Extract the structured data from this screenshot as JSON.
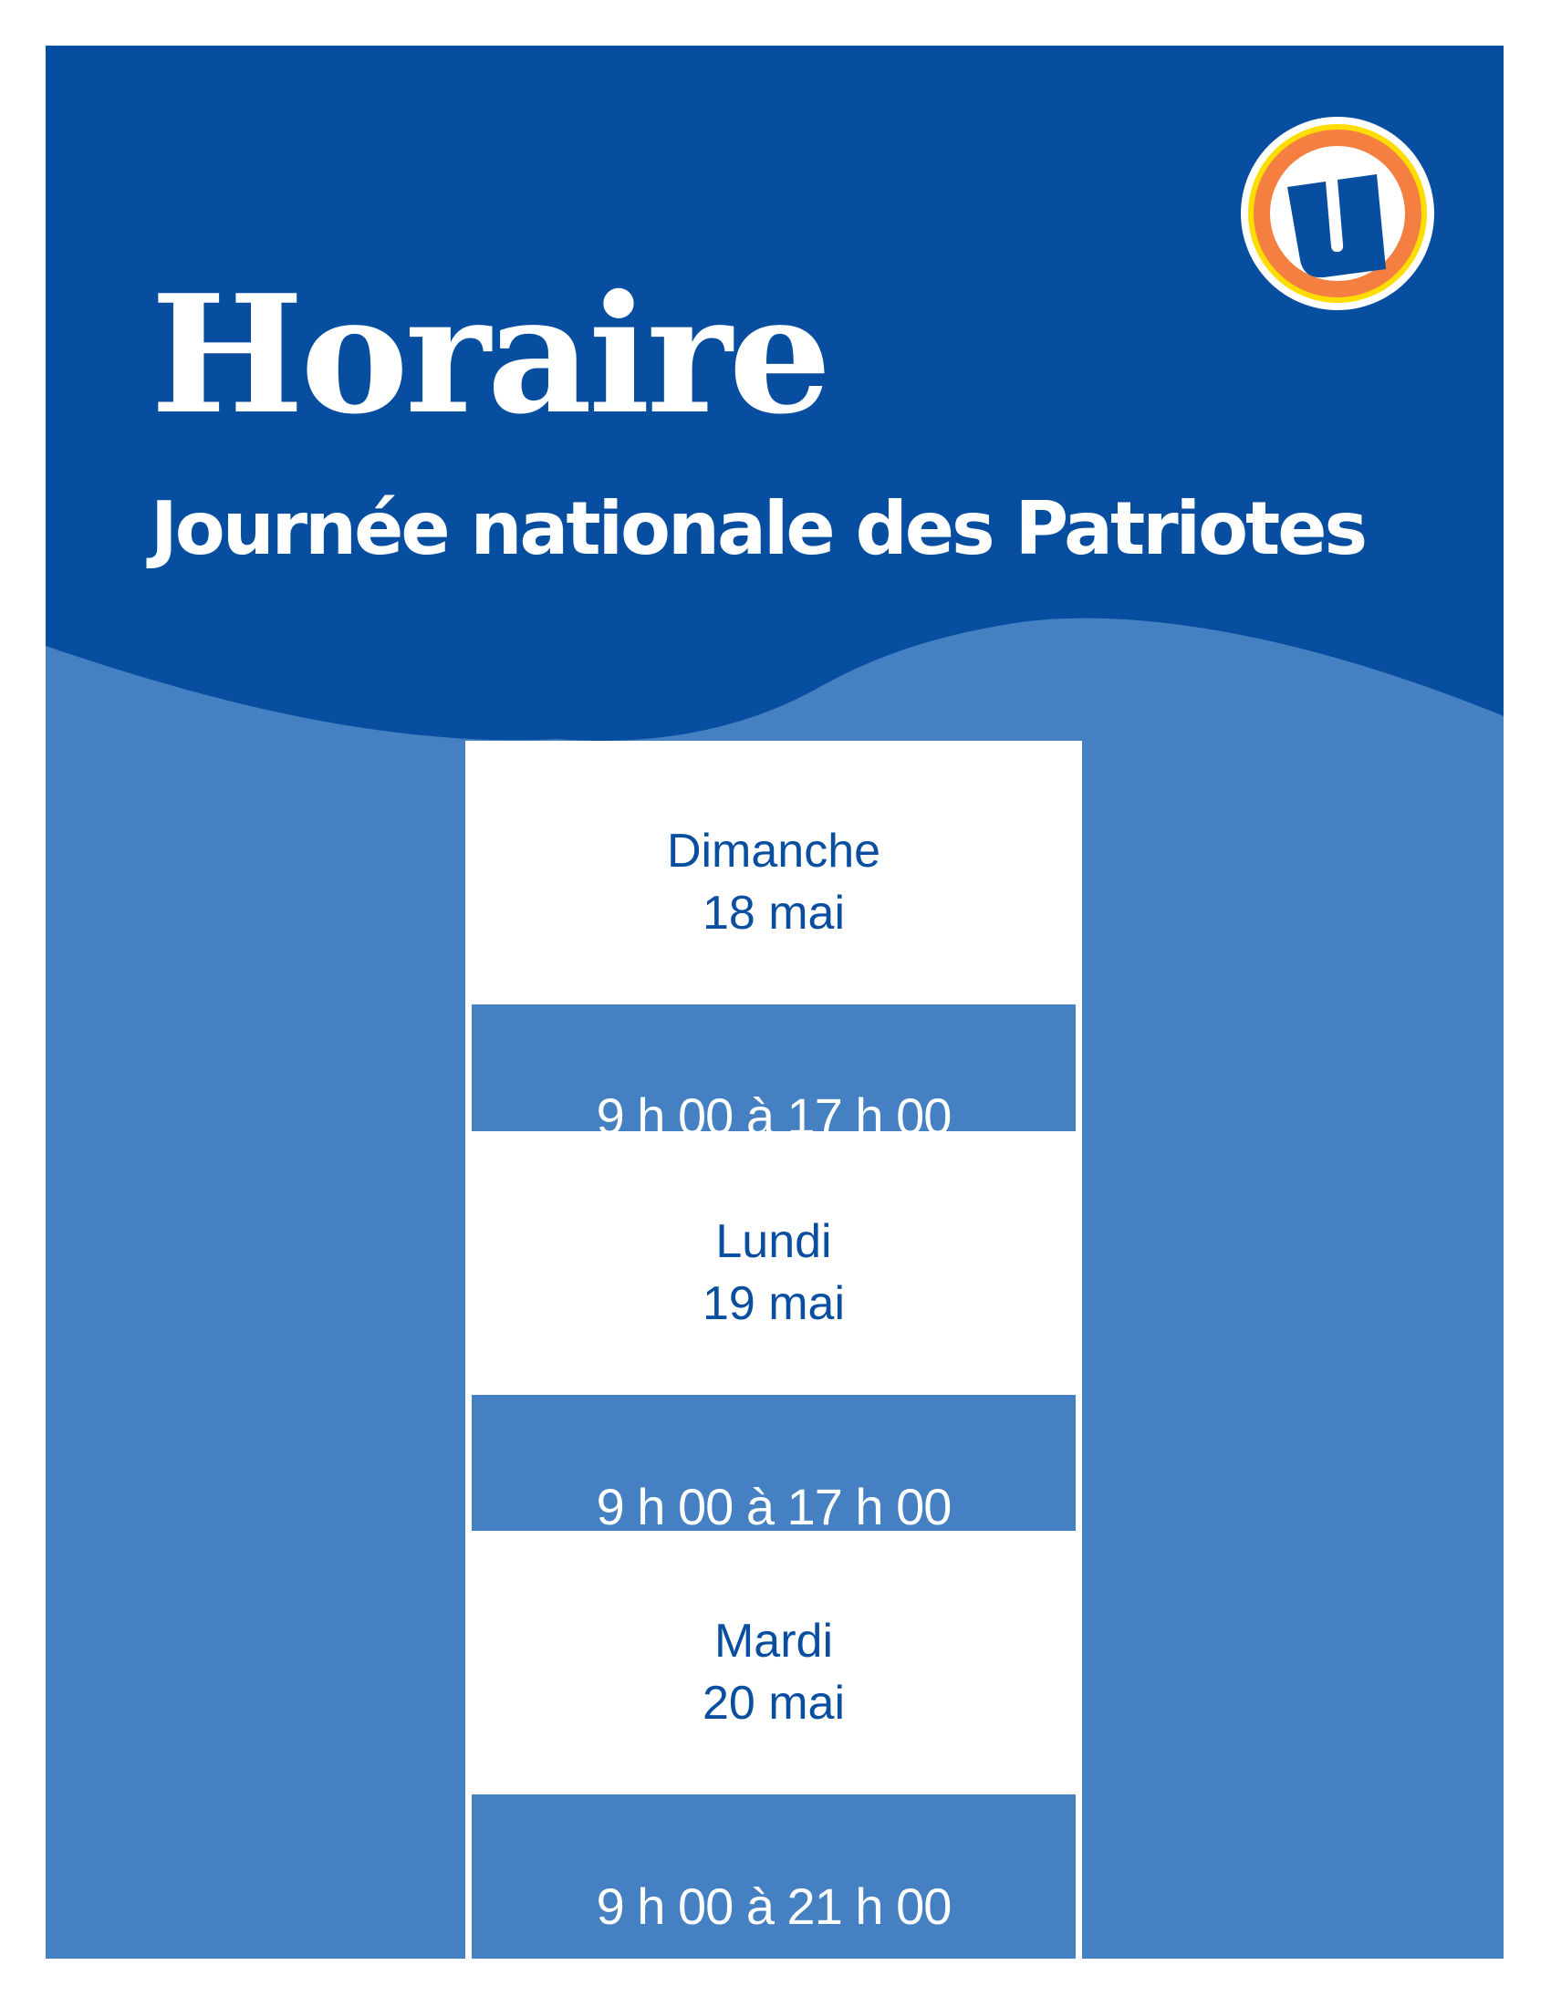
{
  "colors": {
    "dark_blue": "#084ea0",
    "light_blue": "#4580c2",
    "orange": "#f47f40",
    "yellow": "#ffdd00"
  },
  "logo": {
    "icon": "u-logo",
    "letter": "U"
  },
  "title": "Horaire",
  "subtitle": "Journée nationale des Patriotes",
  "schedule": [
    {
      "day": "Dimanche",
      "date": "18 mai",
      "hours": "9 h 00 à 17 h 00"
    },
    {
      "day": "Lundi",
      "date": "19 mai",
      "hours": "9 h 00 à 17 h 00"
    },
    {
      "day": "Mardi",
      "date": "20 mai",
      "hours": "9 h 00 à 21 h 00"
    }
  ]
}
